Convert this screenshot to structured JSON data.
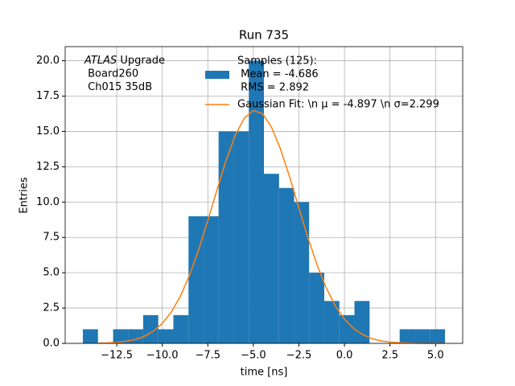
{
  "chart_data": {
    "type": "histogram",
    "title": "Run 735",
    "xlabel": "time [ns]",
    "ylabel": "Entries",
    "bins": [
      -14.36,
      -13.53,
      -12.7,
      -11.87,
      -11.05,
      -10.22,
      -9.39,
      -8.56,
      -7.73,
      -6.91,
      -6.08,
      -5.25,
      -4.42,
      -3.59,
      -2.76,
      -1.94,
      -1.11,
      -0.28,
      0.55,
      1.38,
      2.21,
      3.03,
      3.86,
      4.69,
      5.52
    ],
    "counts": [
      1,
      0,
      1,
      1,
      2,
      1,
      2,
      9,
      9,
      15,
      15,
      20,
      12,
      11,
      10,
      5,
      3,
      2,
      3,
      0,
      0,
      1,
      1,
      1
    ],
    "color": "#1f77b4",
    "legend_lines": [
      "Samples (125):",
      " Mean = -4.686",
      " RMS = 2.892"
    ],
    "fit": {
      "name": "Gaussian Fit: \\n μ = -4.897 \\n σ=2.299",
      "color": "#ff7f0e",
      "x": [
        -13.5,
        -13,
        -12.5,
        -12,
        -11.5,
        -11,
        -10.5,
        -10,
        -9.5,
        -9,
        -8.5,
        -8,
        -7.5,
        -7,
        -6.5,
        -6,
        -5.5,
        -5,
        -4.5,
        -4,
        -3.5,
        -3,
        -2.5,
        -2,
        -1.5,
        -1,
        -0.5,
        0,
        0.5,
        1,
        1.5,
        2,
        2.5,
        3,
        3.5,
        4,
        4.5,
        5,
        5.5
      ],
      "values": [
        0.02,
        0.03,
        0.07,
        0.14,
        0.27,
        0.49,
        0.85,
        1.41,
        2.22,
        3.36,
        4.83,
        6.64,
        8.69,
        10.86,
        12.94,
        14.71,
        15.94,
        16.48,
        16.26,
        15.29,
        13.72,
        11.74,
        9.58,
        7.46,
        5.54,
        3.92,
        2.65,
        1.71,
        1.05,
        0.62,
        0.34,
        0.18,
        0.09,
        0.05,
        0.02,
        0.01,
        0,
        0,
        0
      ]
    },
    "annotation": {
      "emphasis": "ATLAS",
      "first_line_rest": " Upgrade",
      "lines": [
        " Board260",
        " Ch015 35dB"
      ]
    },
    "xlim": [
      -15.33,
      6.49
    ],
    "ylim": [
      0,
      21.0
    ],
    "xticks": [
      {
        "value": -12.5,
        "label": "−12.5"
      },
      {
        "value": -10,
        "label": "−10.0"
      },
      {
        "value": -7.5,
        "label": "−7.5"
      },
      {
        "value": -5,
        "label": "−5.0"
      },
      {
        "value": -2.5,
        "label": "−2.5"
      },
      {
        "value": 0,
        "label": "0.0"
      },
      2.5,
      {
        "value": 5,
        "label": "5.0"
      }
    ],
    "yticks": [
      {
        "value": 0,
        "label": "0.0"
      },
      2.5,
      {
        "value": 5,
        "label": "5.0"
      },
      7.5,
      {
        "value": 10,
        "label": "10.0"
      },
      12.5,
      {
        "value": 15,
        "label": "15.0"
      },
      17.5,
      {
        "value": 20,
        "label": "20.0"
      }
    ],
    "grid": true
  }
}
